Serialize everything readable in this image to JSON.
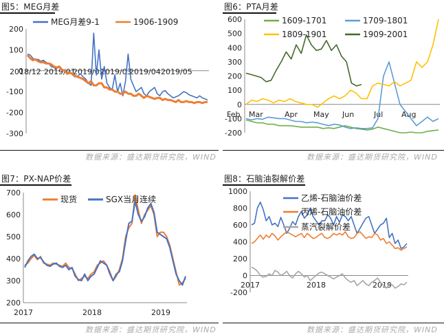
{
  "source_text": "数据来源：盛达期货研究院，WIND",
  "colors": {
    "blue": "#4472C4",
    "orange": "#ED7D31",
    "gray": "#A5A5A5",
    "green_light": "#70AD47",
    "blue_light": "#5B9BD5",
    "yellow": "#FFC000",
    "green_dark": "#43682B"
  },
  "chart_data": [
    {
      "id": "meg",
      "type": "line",
      "title": "图5：MEG月差",
      "ylim": [
        -300,
        200
      ],
      "yticks": [
        200,
        100,
        0,
        -100,
        -200,
        -300
      ],
      "x_tick_labels": [
        "2018/12",
        "2019/01",
        "2019/02",
        "2019/03",
        "2019/04",
        "2019/05"
      ],
      "legend": "top",
      "series": [
        {
          "name": "MEG月差9-1",
          "color": "#4472C4",
          "values": [
            80,
            75,
            60,
            50,
            55,
            45,
            50,
            40,
            35,
            20,
            15,
            10,
            20,
            5,
            0,
            -10,
            -5,
            -20,
            -30,
            -25,
            -15,
            -30,
            -40,
            -60,
            -70,
            180,
            -20,
            100,
            -40,
            20,
            -60,
            -80,
            -90,
            -20,
            -100,
            -60,
            -120,
            -50,
            80,
            -40,
            -70,
            -100,
            -90,
            -80,
            -110,
            -120,
            -100,
            -90,
            -80,
            -110,
            -120,
            -100,
            -95,
            -110,
            -120,
            -130,
            -125,
            -120,
            -110,
            -100,
            -105,
            -115,
            -120,
            -125,
            -130,
            -120,
            -130,
            -135,
            -140
          ]
        },
        {
          "name": "1906-1909",
          "color": "#ED7D31",
          "values": [
            75,
            60,
            50,
            55,
            45,
            40,
            40,
            35,
            35,
            30,
            20,
            15,
            20,
            5,
            0,
            -15,
            -10,
            -15,
            -25,
            -30,
            -35,
            -40,
            -50,
            -60,
            -50,
            -70,
            -70,
            -60,
            -60,
            -80,
            -80,
            -90,
            -90,
            -100,
            -100,
            -110,
            -110,
            -100,
            -110,
            -110,
            -120,
            -120,
            -110,
            -120,
            -130,
            -120,
            -125,
            -130,
            -135,
            -130,
            -130,
            -140,
            -135,
            -140,
            -140,
            -145,
            -150,
            -140,
            -150,
            -150,
            -145,
            -150,
            -150,
            -155,
            -150,
            -150,
            -155,
            -150,
            -150
          ]
        }
      ]
    },
    {
      "id": "pta",
      "type": "line",
      "title": "图6：PTA月差",
      "ylim": [
        -200,
        600
      ],
      "yticks": [
        600,
        500,
        400,
        300,
        200,
        100,
        0,
        -100,
        -200
      ],
      "x_tick_labels": [
        "Feb",
        "Mar",
        "Apr",
        "May",
        "Jun",
        "Jul",
        "Aug"
      ],
      "legend": "top",
      "series": [
        {
          "name": "1609-1701",
          "color": "#70AD47",
          "values": [
            -110,
            -120,
            -130,
            -130,
            -140,
            -140,
            -150,
            -150,
            -150,
            -155,
            -160,
            -160,
            -160,
            -160,
            -170,
            -165,
            -170,
            -160,
            -150,
            -160,
            -170,
            -175,
            -180,
            -175,
            -160,
            -170,
            -180,
            -190,
            -200,
            -200,
            -195,
            -200,
            -200,
            -190,
            -185,
            -180
          ]
        },
        {
          "name": "1709-1801",
          "color": "#5B9BD5",
          "values": [
            -100,
            -110,
            -100,
            -105,
            -90,
            -95,
            -100,
            -100,
            -110,
            -120,
            -120,
            -130,
            -125,
            -130,
            -140,
            -150,
            -140,
            -145,
            -160,
            -170,
            -165,
            -170,
            -170,
            -165,
            -100,
            200,
            300,
            150,
            0,
            -50,
            -100,
            -150,
            -120,
            -90,
            -120,
            -100
          ]
        },
        {
          "name": "1809-1901",
          "color": "#FFC000",
          "values": [
            0,
            30,
            20,
            40,
            30,
            10,
            30,
            20,
            40,
            20,
            10,
            0,
            0,
            -20,
            10,
            40,
            60,
            40,
            60,
            100,
            80,
            40,
            40,
            130,
            150,
            140,
            130,
            160,
            130,
            150,
            170,
            300,
            260,
            300,
            420,
            600
          ]
        },
        {
          "name": "1909-2001",
          "color": "#43682B",
          "values": [
            220,
            210,
            200,
            190,
            160,
            170,
            240,
            300,
            370,
            320,
            420,
            360,
            490,
            420,
            380,
            390,
            450,
            380,
            420,
            340,
            300,
            150,
            130,
            140
          ]
        }
      ]
    },
    {
      "id": "pxnap",
      "type": "line",
      "title": "图7：PX-NAP价差",
      "ylim": [
        200,
        700
      ],
      "yticks": [
        700,
        600,
        500,
        400,
        300,
        200
      ],
      "x_tick_labels": [
        "2017",
        "2018",
        "2019"
      ],
      "legend": "top-left",
      "series": [
        {
          "name": "现货",
          "color": "#ED7D31",
          "values": [
            370,
            380,
            400,
            415,
            395,
            410,
            380,
            375,
            370,
            380,
            375,
            370,
            365,
            380,
            360,
            355,
            330,
            300,
            310,
            320,
            310,
            330,
            340,
            370,
            380,
            390,
            370,
            340,
            300,
            320,
            350,
            400,
            500,
            540,
            560,
            690,
            620,
            560,
            600,
            620,
            640,
            600,
            500,
            520,
            520,
            500,
            460,
            400,
            340,
            280,
            290,
            310
          ]
        },
        {
          "name": "SGX当月连续",
          "color": "#4472C4",
          "values": [
            360,
            390,
            410,
            420,
            400,
            405,
            385,
            370,
            365,
            375,
            380,
            365,
            360,
            370,
            350,
            360,
            320,
            305,
            300,
            330,
            300,
            320,
            330,
            360,
            390,
            380,
            370,
            330,
            300,
            330,
            340,
            390,
            480,
            560,
            570,
            660,
            600,
            570,
            590,
            630,
            650,
            610,
            520,
            510,
            500,
            490,
            450,
            390,
            330,
            300,
            280,
            320
          ]
        }
      ]
    },
    {
      "id": "naphtha",
      "type": "line",
      "title": "图8：石脑油裂解价差",
      "ylim": [
        -200,
        1000
      ],
      "yticks": [
        1000,
        800,
        600,
        400,
        200,
        0,
        -200
      ],
      "x_tick_labels": [
        "2017",
        "2018",
        "2019"
      ],
      "legend": "top-left",
      "series": [
        {
          "name": "乙烯-石脑油价差",
          "color": "#4472C4",
          "values": [
            600,
            620,
            800,
            870,
            780,
            650,
            700,
            600,
            620,
            580,
            690,
            600,
            500,
            560,
            640,
            600,
            700,
            760,
            680,
            720,
            800,
            700,
            650,
            600,
            650,
            650,
            720,
            680,
            600,
            700,
            630,
            720,
            700,
            650,
            700,
            600,
            500,
            560,
            620,
            680,
            700,
            600,
            500,
            550,
            600,
            620,
            680,
            450,
            500,
            380,
            420,
            320,
            340,
            380
          ]
        },
        {
          "name": "丙烯-石脑油价差",
          "color": "#ED7D31",
          "values": [
            380,
            400,
            440,
            480,
            430,
            480,
            450,
            500,
            470,
            420,
            460,
            490,
            520,
            500,
            480,
            460,
            480,
            500,
            450,
            500,
            470,
            440,
            450,
            480,
            500,
            450,
            440,
            460,
            500,
            480,
            500,
            480,
            520,
            460,
            440,
            450,
            500,
            520,
            480,
            440,
            460,
            450,
            500,
            480,
            420,
            440,
            380,
            400,
            360,
            320,
            330,
            300,
            320,
            340
          ]
        },
        {
          "name": "蒸汽裂解价差",
          "color": "#A5A5A5",
          "values": [
            100,
            80,
            50,
            0,
            -20,
            -10,
            20,
            0,
            60,
            40,
            0,
            20,
            50,
            0,
            -30,
            20,
            50,
            20,
            -20,
            0,
            -60,
            -30,
            0,
            30,
            40,
            20,
            0,
            -20,
            -40,
            -20,
            0,
            20,
            -30,
            -60,
            -80,
            -60,
            -120,
            -90,
            -60,
            -100,
            -120,
            -80,
            -60,
            -30,
            -80,
            -120,
            -150,
            -100,
            -110,
            -150,
            -130,
            -100,
            -110,
            -80
          ]
        }
      ]
    }
  ]
}
